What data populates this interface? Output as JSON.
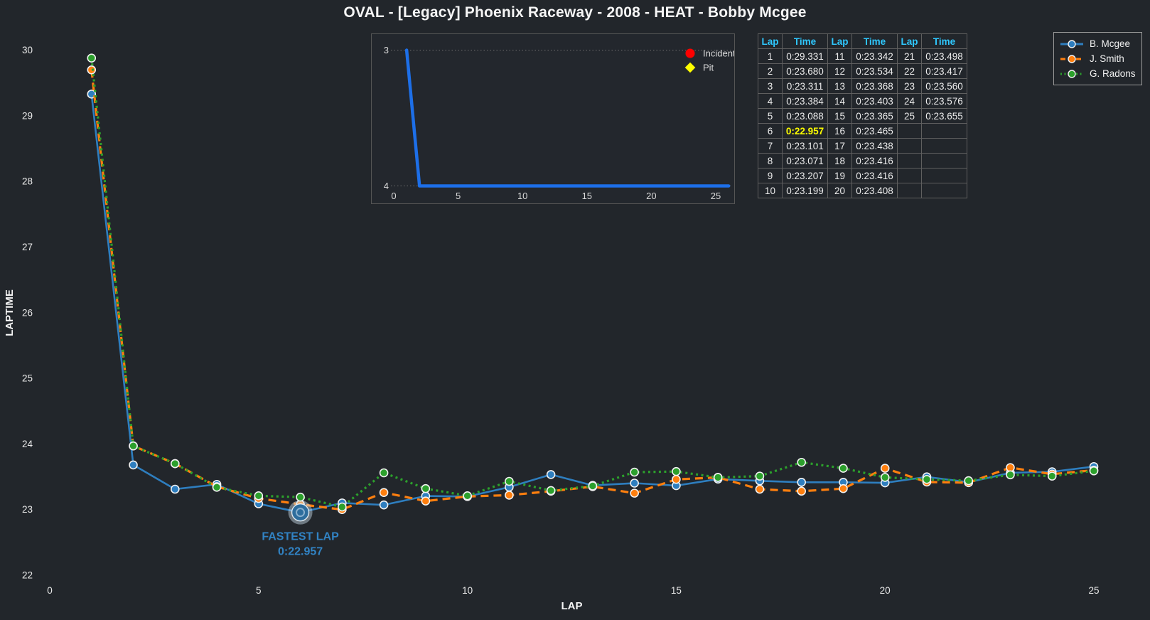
{
  "title": "OVAL - [Legacy] Phoenix Raceway - 2008 - HEAT - Bobby Mcgee",
  "colors": {
    "background": "#22262b",
    "table_header": "#2fc8ff",
    "fastest_highlight": "#ffff00",
    "annotation_blue": "#3183c4",
    "inset_line": "#1d6fe8",
    "incident_red": "#ff0000",
    "pit_yellow": "#ffff00"
  },
  "chart_data": [
    {
      "type": "line",
      "name": "laptime-chart",
      "xlabel": "LAP",
      "ylabel": "LAPTIME",
      "xlim": [
        0,
        25
      ],
      "ylim": [
        22,
        30
      ],
      "xticks": [
        0,
        5,
        10,
        15,
        20,
        25
      ],
      "yticks": [
        22,
        23,
        24,
        25,
        26,
        27,
        28,
        29,
        30
      ],
      "grid": false,
      "legend_position": "top-right",
      "x": [
        1,
        2,
        3,
        4,
        5,
        6,
        7,
        8,
        9,
        10,
        11,
        12,
        13,
        14,
        15,
        16,
        17,
        18,
        19,
        20,
        21,
        22,
        23,
        24,
        25
      ],
      "series": [
        {
          "name": "B. Mcgee",
          "color": "#2e7ebf",
          "line_style": "solid",
          "values": [
            29.331,
            23.68,
            23.311,
            23.384,
            23.088,
            22.957,
            23.101,
            23.071,
            23.207,
            23.199,
            23.342,
            23.534,
            23.368,
            23.403,
            23.365,
            23.465,
            23.438,
            23.416,
            23.416,
            23.408,
            23.498,
            23.417,
            23.56,
            23.576,
            23.655
          ]
        },
        {
          "name": "J. Smith",
          "color": "#ff7f0e",
          "line_style": "dashed",
          "values": [
            29.7,
            23.97,
            23.7,
            23.35,
            23.17,
            23.08,
            23.0,
            23.26,
            23.13,
            23.2,
            23.22,
            23.28,
            23.35,
            23.25,
            23.46,
            23.49,
            23.31,
            23.28,
            23.32,
            23.63,
            23.42,
            23.41,
            23.64,
            23.54,
            23.6
          ]
        },
        {
          "name": "G. Radons",
          "color": "#2ca02c",
          "line_style": "dotted",
          "values": [
            29.88,
            23.97,
            23.7,
            23.34,
            23.21,
            23.19,
            23.04,
            23.56,
            23.32,
            23.21,
            23.43,
            23.29,
            23.36,
            23.57,
            23.58,
            23.49,
            23.51,
            23.72,
            23.63,
            23.49,
            23.46,
            23.44,
            23.53,
            23.51,
            23.59
          ]
        }
      ],
      "annotation": {
        "series": "B. Mcgee",
        "lap": 6,
        "label": "FASTEST LAP",
        "time": "0:22.957"
      }
    },
    {
      "type": "line",
      "name": "position-inset",
      "x": [
        1,
        2,
        3,
        4,
        5,
        6,
        7,
        8,
        9,
        10,
        11,
        12,
        13,
        14,
        15,
        16,
        17,
        18,
        19,
        20,
        21,
        22,
        23,
        24,
        25,
        26
      ],
      "values": [
        3,
        4,
        4,
        4,
        4,
        4,
        4,
        4,
        4,
        4,
        4,
        4,
        4,
        4,
        4,
        4,
        4,
        4,
        4,
        4,
        4,
        4,
        4,
        4,
        4,
        4
      ],
      "y_inverted": true,
      "yticks": [
        3,
        4
      ],
      "xticks": [
        0,
        5,
        10,
        15,
        20,
        25
      ],
      "xlim": [
        0,
        26
      ],
      "grid": "horizontal-dotted",
      "marker_legend": [
        {
          "label": "Incident",
          "marker": "circle",
          "color": "#ff0000"
        },
        {
          "label": "Pit",
          "marker": "diamond",
          "color": "#ffff00"
        }
      ]
    }
  ],
  "lap_table": {
    "headers": [
      "Lap",
      "Time"
    ],
    "column_groups": 3,
    "rows_per_group": 10,
    "fastest_lap": 6,
    "times": [
      "0:29.331",
      "0:23.680",
      "0:23.311",
      "0:23.384",
      "0:23.088",
      "0:22.957",
      "0:23.101",
      "0:23.071",
      "0:23.207",
      "0:23.199",
      "0:23.342",
      "0:23.534",
      "0:23.368",
      "0:23.403",
      "0:23.365",
      "0:23.465",
      "0:23.438",
      "0:23.416",
      "0:23.416",
      "0:23.408",
      "0:23.498",
      "0:23.417",
      "0:23.560",
      "0:23.576",
      "0:23.655"
    ]
  }
}
